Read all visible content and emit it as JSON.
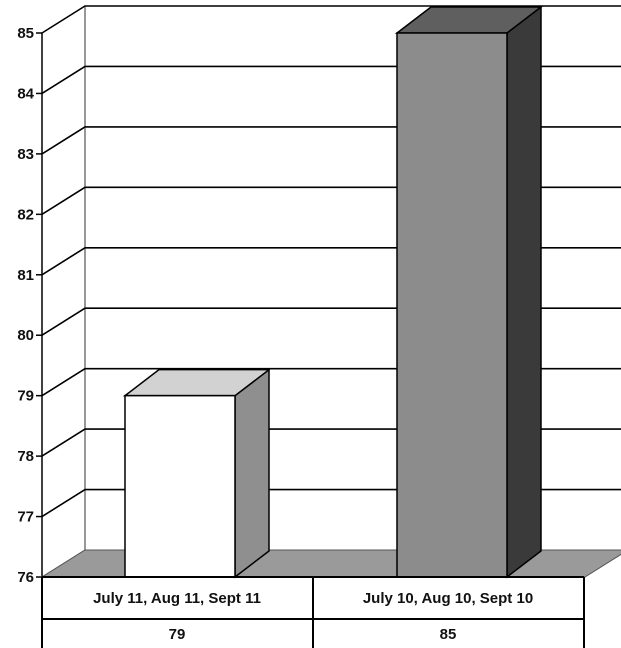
{
  "chart_data": {
    "type": "bar",
    "title": "",
    "xlabel": "",
    "ylabel": "",
    "categories": [
      "July 11, Aug 11, Sept 11",
      "July 10, Aug 10, Sept 10"
    ],
    "values": [
      79,
      85
    ],
    "value_labels": [
      "79",
      "85"
    ],
    "ylim": [
      76,
      85
    ],
    "yticks": [
      "76",
      "77",
      "78",
      "79",
      "80",
      "81",
      "82",
      "83",
      "84",
      "85"
    ],
    "grid": true,
    "legend": "none",
    "style": "3d",
    "colors": {
      "bar_front": [
        "#ffffff",
        "#8c8c8c"
      ],
      "bar_side": [
        "#8f8f8f",
        "#3a3a3a"
      ],
      "bar_top": [
        "#d2d2d2",
        "#5f5f5f"
      ],
      "floor": "#9a9a9a",
      "grid": "#000000"
    }
  }
}
